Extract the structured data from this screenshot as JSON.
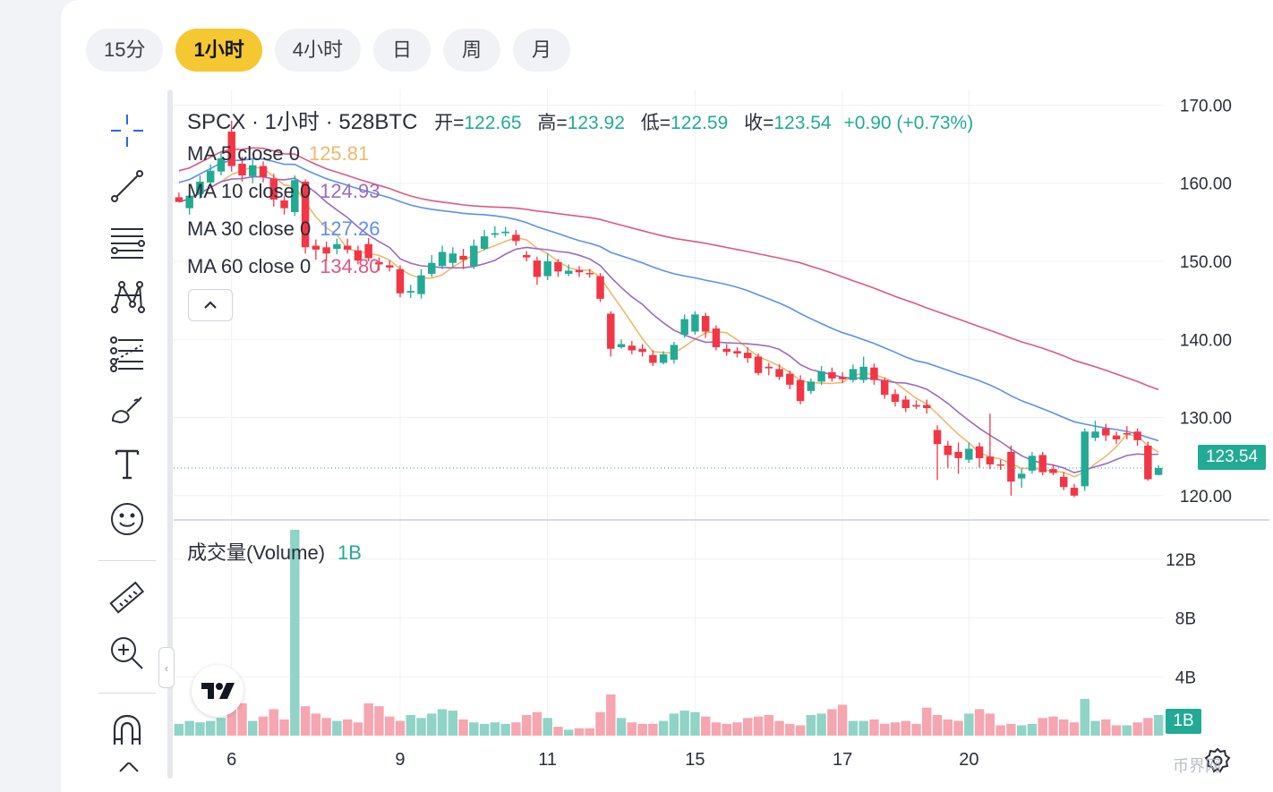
{
  "timeframes": [
    {
      "label": "15分",
      "active": false
    },
    {
      "label": "1小时",
      "active": true
    },
    {
      "label": "4小时",
      "active": false
    },
    {
      "label": "日",
      "active": false
    },
    {
      "label": "周",
      "active": false
    },
    {
      "label": "月",
      "active": false
    }
  ],
  "toolbar": [
    "crosshair-icon",
    "trend-line-icon",
    "fib-retracement-icon",
    "pattern-icon",
    "forecast-icon",
    "brush-icon",
    "text-icon",
    "emoji-icon",
    "ruler-icon",
    "zoom-in-icon",
    "magnet-icon"
  ],
  "legend": {
    "symbol": "SPCX · 1小时 · 528BTC",
    "open_key": "开=",
    "open": "122.65",
    "high_key": "高=",
    "high": "123.92",
    "low_key": "低=",
    "low": "122.59",
    "close_key": "收=",
    "close": "123.54",
    "change": "+0.90 (+0.73%)",
    "ma": [
      {
        "label": "MA 5 close 0",
        "value": "125.81",
        "color": "#f0b86a"
      },
      {
        "label": "MA 10 close 0",
        "value": "124.93",
        "color": "#9b6bc0"
      },
      {
        "label": "MA 30 close 0",
        "value": "127.26",
        "color": "#5b8ff0"
      },
      {
        "label": "MA 60 close 0",
        "value": "134.80",
        "color": "#e0577f"
      }
    ]
  },
  "volume_legend": {
    "label": "成交量(Volume)",
    "value": "1B"
  },
  "last_price": "123.54",
  "last_volume": "1B",
  "colors": {
    "up": "#22ab94",
    "down": "#f23645",
    "vol_up": "#8fd4c6",
    "vol_down": "#f6a6b0"
  },
  "watermark": "币界网",
  "chart_data": {
    "type": "candlestick",
    "price_axis": {
      "ticks": [
        "170.00",
        "160.00",
        "150.00",
        "140.00",
        "130.00",
        "120.00"
      ],
      "range": [
        117,
        172
      ]
    },
    "volume_axis": {
      "ticks": [
        "12B",
        "8B",
        "4B"
      ],
      "range": [
        0,
        14
      ]
    },
    "x_ticks": [
      {
        "label": "6",
        "index": 5
      },
      {
        "label": "9",
        "index": 21
      },
      {
        "label": "11",
        "index": 35
      },
      {
        "label": "15",
        "index": 49
      },
      {
        "label": "17",
        "index": 63
      },
      {
        "label": "20",
        "index": 75
      }
    ],
    "candles": [
      [
        158.2,
        157.6,
        157.9,
        158.8
      ],
      [
        156.8,
        158.4,
        159.6,
        156.0
      ],
      [
        158.6,
        160.2,
        161.0,
        158.0
      ],
      [
        160.1,
        161.6,
        162.4,
        159.6
      ],
      [
        161.5,
        163.2,
        164.0,
        161.0
      ],
      [
        166.6,
        162.2,
        168.0,
        161.5
      ],
      [
        162.5,
        161.0,
        163.4,
        160.2
      ],
      [
        160.9,
        162.3,
        163.0,
        160.0
      ],
      [
        162.2,
        160.8,
        162.8,
        160.1
      ],
      [
        160.6,
        157.9,
        161.2,
        157.0
      ],
      [
        157.8,
        156.8,
        158.4,
        156.0
      ],
      [
        156.3,
        160.4,
        161.0,
        155.8
      ],
      [
        160.2,
        151.8,
        160.5,
        151.0
      ],
      [
        152.0,
        151.5,
        152.8,
        150.2
      ],
      [
        151.8,
        151.0,
        152.5,
        150.0
      ],
      [
        151.6,
        152.2,
        152.9,
        150.9
      ],
      [
        152.0,
        151.5,
        152.9,
        151.0
      ],
      [
        151.4,
        150.1,
        152.0,
        149.6
      ],
      [
        152.2,
        150.4,
        153.0,
        150.0
      ],
      [
        149.9,
        149.6,
        150.5,
        148.8
      ],
      [
        149.5,
        149.2,
        150.1,
        148.7
      ],
      [
        149.0,
        145.9,
        149.5,
        145.4
      ],
      [
        146.0,
        146.2,
        147.0,
        145.3
      ],
      [
        145.8,
        148.2,
        149.0,
        145.2
      ],
      [
        148.4,
        149.8,
        150.8,
        148.0
      ],
      [
        149.4,
        151.2,
        152.0,
        149.0
      ],
      [
        149.8,
        151.0,
        151.8,
        149.3
      ],
      [
        150.7,
        150.2,
        151.6,
        149.0
      ],
      [
        149.4,
        152.0,
        152.8,
        149.0
      ],
      [
        151.6,
        153.2,
        154.0,
        151.4
      ],
      [
        153.4,
        153.6,
        154.5,
        153.0
      ],
      [
        153.6,
        153.8,
        154.4,
        153.2
      ],
      [
        153.4,
        152.6,
        154.0,
        152.0
      ],
      [
        150.8,
        150.5,
        151.3,
        150.0
      ],
      [
        150.1,
        148.0,
        150.6,
        147.0
      ],
      [
        148.1,
        150.0,
        151.0,
        147.6
      ],
      [
        149.9,
        148.7,
        150.3,
        148.0
      ],
      [
        148.4,
        148.8,
        149.6,
        148.1
      ],
      [
        148.9,
        148.6,
        149.4,
        148.0
      ],
      [
        148.5,
        148.4,
        149.0,
        147.9
      ],
      [
        148.1,
        145.2,
        148.5,
        144.8
      ],
      [
        143.3,
        138.8,
        143.6,
        137.8
      ],
      [
        139.0,
        139.4,
        140.0,
        138.8
      ],
      [
        139.2,
        138.6,
        139.8,
        138.1
      ],
      [
        138.8,
        138.4,
        139.4,
        137.8
      ],
      [
        138.0,
        137.0,
        138.6,
        136.6
      ],
      [
        137.0,
        138.1,
        138.5,
        136.8
      ],
      [
        137.4,
        139.3,
        139.7,
        136.9
      ],
      [
        140.6,
        142.6,
        143.2,
        140.2
      ],
      [
        141.0,
        143.2,
        143.6,
        140.6
      ],
      [
        143.0,
        141.0,
        143.4,
        140.2
      ],
      [
        141.4,
        139.0,
        141.8,
        138.6
      ],
      [
        138.8,
        138.4,
        139.4,
        137.9
      ],
      [
        138.5,
        138.2,
        139.0,
        137.7
      ],
      [
        138.3,
        137.6,
        139.0,
        137.0
      ],
      [
        137.8,
        135.7,
        138.2,
        135.4
      ],
      [
        136.5,
        136.3,
        137.0,
        135.4
      ],
      [
        136.2,
        135.2,
        136.8,
        134.8
      ],
      [
        135.6,
        134.2,
        136.0,
        133.6
      ],
      [
        134.8,
        132.1,
        135.4,
        131.7
      ],
      [
        133.4,
        134.6,
        135.0,
        133.0
      ],
      [
        134.6,
        135.9,
        136.6,
        134.2
      ],
      [
        135.8,
        135.0,
        136.4,
        134.6
      ],
      [
        135.2,
        134.9,
        135.8,
        134.4
      ],
      [
        134.8,
        136.2,
        136.8,
        134.5
      ],
      [
        134.8,
        136.5,
        137.8,
        134.4
      ],
      [
        136.4,
        134.8,
        136.9,
        134.2
      ],
      [
        134.8,
        132.9,
        135.1,
        132.4
      ],
      [
        133.0,
        132.0,
        133.6,
        131.4
      ],
      [
        132.3,
        131.2,
        132.8,
        130.7
      ],
      [
        131.6,
        131.4,
        132.2,
        131.1
      ],
      [
        131.6,
        131.2,
        132.3,
        130.5
      ],
      [
        128.4,
        126.6,
        129.0,
        122.0
      ],
      [
        126.4,
        125.2,
        127.0,
        123.5
      ],
      [
        125.6,
        124.8,
        126.8,
        122.8
      ],
      [
        124.6,
        126.0,
        126.8,
        124.2
      ],
      [
        126.3,
        124.8,
        126.8,
        123.6
      ],
      [
        125.0,
        124.0,
        130.5,
        123.4
      ],
      [
        124.0,
        123.9,
        124.6,
        123.3
      ],
      [
        125.6,
        121.8,
        126.4,
        120.0
      ],
      [
        122.2,
        122.8,
        123.5,
        121.0
      ],
      [
        123.2,
        125.1,
        125.6,
        122.8
      ],
      [
        125.2,
        123.0,
        125.6,
        122.6
      ],
      [
        123.4,
        122.9,
        124.0,
        122.6
      ],
      [
        122.4,
        121.1,
        123.0,
        120.7
      ],
      [
        121.0,
        120.0,
        121.5,
        119.8
      ],
      [
        121.2,
        128.2,
        128.6,
        120.6
      ],
      [
        127.4,
        128.2,
        129.6,
        127.0
      ],
      [
        128.6,
        127.7,
        129.2,
        127.0
      ],
      [
        127.7,
        127.2,
        128.2,
        126.6
      ],
      [
        128.0,
        127.9,
        128.9,
        127.2
      ],
      [
        128.2,
        127.1,
        128.6,
        126.4
      ],
      [
        126.4,
        122.1,
        126.9,
        121.9
      ],
      [
        122.65,
        123.54,
        123.92,
        122.59
      ]
    ],
    "volume": [
      0.8,
      1.0,
      0.9,
      1.0,
      1.2,
      2.5,
      2.2,
      1.0,
      1.3,
      1.8,
      1.1,
      14.0,
      2.0,
      1.5,
      1.2,
      1.0,
      1.1,
      0.9,
      2.2,
      2.0,
      1.3,
      1.0,
      1.4,
      1.2,
      1.5,
      1.8,
      1.7,
      1.1,
      0.9,
      0.8,
      0.9,
      0.8,
      0.9,
      1.4,
      1.6,
      1.2,
      0.6,
      0.4,
      0.5,
      0.5,
      1.6,
      2.8,
      1.2,
      0.9,
      0.8,
      0.8,
      1.0,
      1.5,
      1.7,
      1.6,
      1.3,
      0.9,
      0.8,
      0.9,
      1.2,
      1.3,
      1.4,
      1.0,
      0.8,
      0.7,
      1.4,
      1.5,
      1.8,
      2.1,
      1.0,
      1.0,
      1.1,
      0.8,
      0.9,
      1.0,
      0.8,
      1.9,
      1.4,
      1.1,
      1.0,
      1.5,
      1.8,
      1.5,
      0.7,
      0.8,
      0.7,
      0.8,
      1.2,
      1.3,
      1.1,
      0.9,
      2.5,
      1.0,
      1.1,
      0.7,
      0.7,
      0.9,
      1.2,
      1.4
    ],
    "volume_up": [
      1,
      1,
      1,
      1,
      1,
      0,
      0,
      1,
      0,
      0,
      0,
      1,
      0,
      0,
      0,
      1,
      0,
      0,
      0,
      0,
      0,
      0,
      1,
      1,
      1,
      1,
      1,
      0,
      1,
      1,
      1,
      1,
      0,
      0,
      0,
      1,
      0,
      1,
      0,
      0,
      0,
      0,
      1,
      0,
      0,
      0,
      1,
      1,
      1,
      1,
      0,
      0,
      0,
      0,
      0,
      0,
      0,
      0,
      0,
      0,
      1,
      1,
      0,
      0,
      1,
      1,
      0,
      0,
      0,
      0,
      0,
      0,
      0,
      0,
      0,
      1,
      0,
      0,
      0,
      0,
      1,
      1,
      0,
      0,
      0,
      0,
      1,
      1,
      0,
      0,
      1,
      0,
      0,
      1
    ]
  }
}
